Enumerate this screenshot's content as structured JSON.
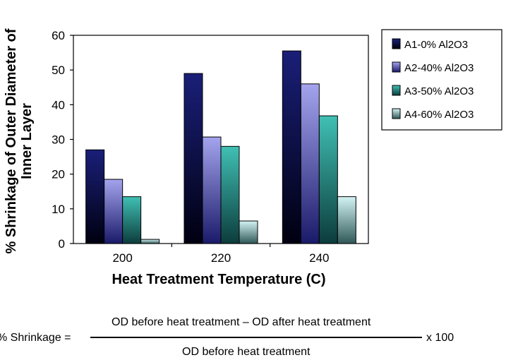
{
  "chart_data": {
    "type": "bar",
    "title": "",
    "xlabel": "Heat Treatment Temperature (C)",
    "ylabel_line1": "% Shrinkage of Outer Diameter of",
    "ylabel_line2": "Inner Layer",
    "categories": [
      "200",
      "220",
      "240"
    ],
    "ylim": [
      0,
      60
    ],
    "yticks": [
      "0",
      "10",
      "20",
      "30",
      "40",
      "50",
      "60"
    ],
    "grid": false,
    "legend_position": "top-right",
    "series": [
      {
        "name": "A1-0% Al2O3",
        "values": [
          27,
          49,
          55.5
        ],
        "color_top": "#1a1f78",
        "color_bottom": "#000010"
      },
      {
        "name": "A2-40% Al2O3",
        "values": [
          18.5,
          30.7,
          46
        ],
        "color_top": "#a4a4ee",
        "color_bottom": "#1a1a6a"
      },
      {
        "name": "A3-50% Al2O3",
        "values": [
          13.5,
          28,
          36.8
        ],
        "color_top": "#40c0b4",
        "color_bottom": "#0c3c3c"
      },
      {
        "name": "A4-60% Al2O3",
        "values": [
          1.2,
          6.5,
          13.5
        ],
        "color_top": "#d4f4f4",
        "color_bottom": "#305858"
      }
    ]
  },
  "formula": {
    "lhs": "% Shrinkage =",
    "numerator": "OD before heat treatment – OD after heat treatment",
    "denominator": "OD before heat treatment",
    "multiplier": "x 100"
  }
}
